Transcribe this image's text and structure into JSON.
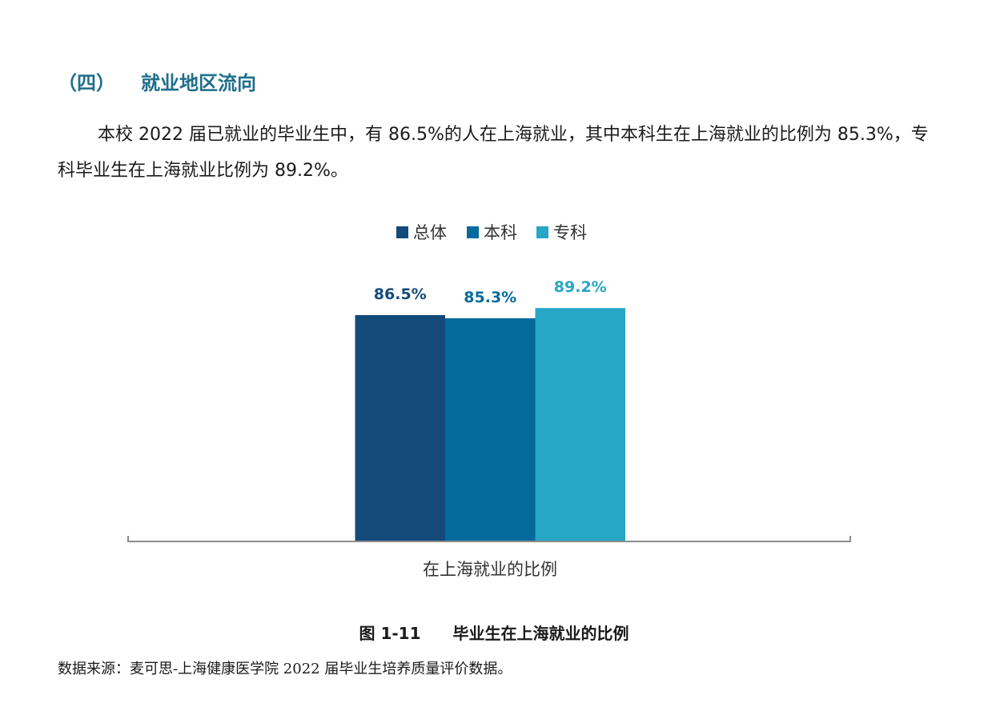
{
  "section": {
    "number": "（四）",
    "title": "就业地区流向"
  },
  "paragraph": "本校 2022 届已就业的毕业生中，有 86.5%的人在上海就业，其中本科生在上海就业的比例为 85.3%，专科毕业生在上海就业比例为 89.2%。",
  "chart_data": {
    "type": "bar",
    "categories": [
      "在上海就业的比例"
    ],
    "series": [
      {
        "name": "总体",
        "values": [
          86.5
        ],
        "label": "86.5%",
        "color": "#134a7a"
      },
      {
        "name": "本科",
        "values": [
          85.3
        ],
        "label": "85.3%",
        "color": "#026a9c"
      },
      {
        "name": "专科",
        "values": [
          89.2
        ],
        "label": "89.2%",
        "color": "#27a6c6"
      }
    ],
    "ylim": [
      0,
      100
    ],
    "grid": false,
    "legend": "top-center"
  },
  "caption": {
    "number": "图 1-11",
    "title": "毕业生在上海就业的比例"
  },
  "source": "数据来源：麦可思-上海健康医学院 2022 届毕业生培养质量评价数据。"
}
